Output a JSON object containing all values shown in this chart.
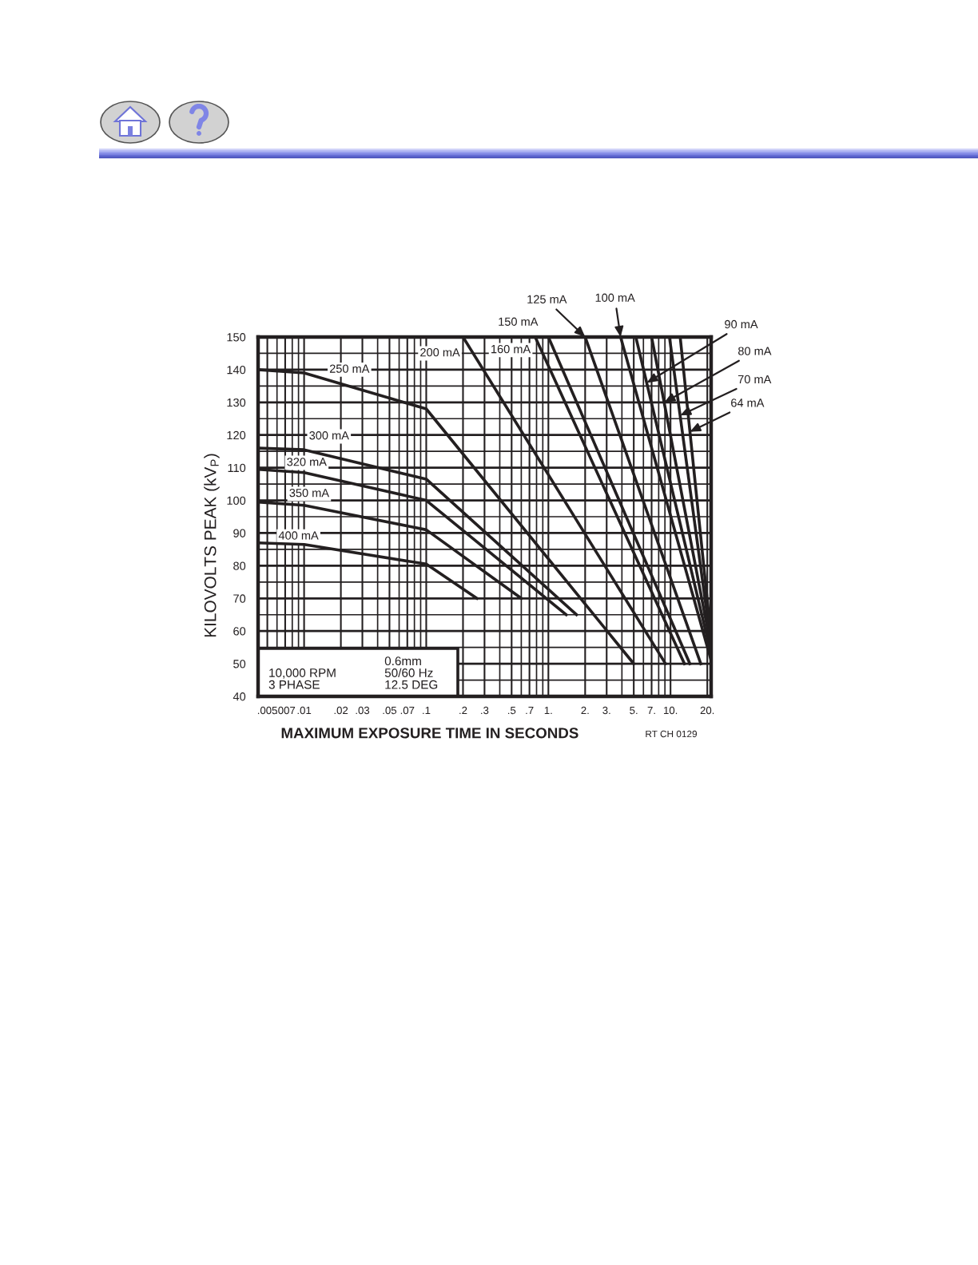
{
  "chart_data": {
    "type": "line",
    "xlabel": "MAXIMUM EXPOSURE TIME IN SECONDS",
    "ylabel": "KILOVOLTS PEAK (kV$_{P}$)",
    "log": "x",
    "grid": true,
    "xlim": [
      0.0042,
      21.5
    ],
    "ylim": [
      40,
      150
    ],
    "xticks": [
      {
        "value": 0.005,
        "label": ".005"
      },
      {
        "value": 0.006,
        "label": null
      },
      {
        "value": 0.007,
        "label": ".007"
      },
      {
        "value": 0.008,
        "label": null
      },
      {
        "value": 0.009,
        "label": null
      },
      {
        "value": 0.01,
        "label": ".01"
      },
      {
        "value": 0.02,
        "label": ".02"
      },
      {
        "value": 0.03,
        "label": ".03"
      },
      {
        "value": 0.04,
        "label": null
      },
      {
        "value": 0.05,
        "label": ".05"
      },
      {
        "value": 0.06,
        "label": null
      },
      {
        "value": 0.07,
        "label": ".07"
      },
      {
        "value": 0.08,
        "label": null
      },
      {
        "value": 0.09,
        "label": null
      },
      {
        "value": 0.1,
        "label": ".1"
      },
      {
        "value": 0.2,
        "label": ".2"
      },
      {
        "value": 0.3,
        "label": ".3"
      },
      {
        "value": 0.4,
        "label": null
      },
      {
        "value": 0.5,
        "label": ".5"
      },
      {
        "value": 0.6,
        "label": null
      },
      {
        "value": 0.7,
        "label": ".7"
      },
      {
        "value": 0.8,
        "label": null
      },
      {
        "value": 0.9,
        "label": null
      },
      {
        "value": 1,
        "label": "1."
      },
      {
        "value": 2,
        "label": "2."
      },
      {
        "value": 3,
        "label": "3."
      },
      {
        "value": 4,
        "label": null
      },
      {
        "value": 5,
        "label": "5."
      },
      {
        "value": 6,
        "label": null
      },
      {
        "value": 7,
        "label": "7."
      },
      {
        "value": 8,
        "label": null
      },
      {
        "value": 9,
        "label": null
      },
      {
        "value": 10,
        "label": "10."
      },
      {
        "value": 20,
        "label": "20."
      }
    ],
    "yticks": [
      40,
      {
        "value": 45,
        "label": null
      },
      50,
      {
        "value": 55,
        "label": null
      },
      60,
      {
        "value": 65,
        "label": null
      },
      70,
      {
        "value": 75,
        "label": null
      },
      80,
      {
        "value": 85,
        "label": null
      },
      90,
      {
        "value": 95,
        "label": null
      },
      100,
      {
        "value": 105,
        "label": null
      },
      110,
      {
        "value": 115,
        "label": null
      },
      120,
      {
        "value": 125,
        "label": null
      },
      130,
      {
        "value": 135,
        "label": null
      },
      140,
      {
        "value": 145,
        "label": null
      },
      150
    ],
    "series": [
      {
        "color": "#231f20",
        "x": [
          0.0042,
          0.01,
          0.1,
          5.0
        ],
        "values": [
          140,
          139,
          128,
          50
        ]
      },
      {
        "color": "#231f20",
        "x": [
          0.0042,
          0.01,
          0.1,
          1.7
        ],
        "values": [
          116,
          115.5,
          106.5,
          65
        ]
      },
      {
        "color": "#231f20",
        "x": [
          0.0042,
          0.01,
          0.1,
          1.4
        ],
        "values": [
          109.5,
          108.5,
          100,
          65
        ]
      },
      {
        "color": "#231f20",
        "x": [
          0.0042,
          0.01,
          0.1,
          0.6
        ],
        "values": [
          99.5,
          98.5,
          91,
          70
        ]
      },
      {
        "color": "#231f20",
        "x": [
          0.0042,
          0.01,
          0.1,
          0.26
        ],
        "values": [
          87,
          86.5,
          80.5,
          70
        ]
      },
      {
        "color": "#231f20",
        "x": [
          0.2,
          9.1
        ],
        "values": [
          150,
          50
        ]
      },
      {
        "color": "#231f20",
        "x": [
          0.78,
          13
        ],
        "values": [
          150,
          50
        ]
      },
      {
        "color": "#231f20",
        "x": [
          1.0,
          14.4
        ],
        "values": [
          150,
          50
        ]
      },
      {
        "color": "#231f20",
        "x": [
          2.0,
          17.7
        ],
        "values": [
          150,
          50
        ]
      },
      {
        "color": "#231f20",
        "x": [
          3.9,
          21.5
        ],
        "values": [
          150,
          51
        ]
      },
      {
        "color": "#231f20",
        "x": [
          5.2,
          21.5
        ],
        "values": [
          150,
          53
        ]
      },
      {
        "color": "#231f20",
        "x": [
          7.0,
          21.5
        ],
        "values": [
          150,
          55
        ]
      },
      {
        "color": "#231f20",
        "x": [
          9.8,
          21.5
        ],
        "values": [
          150,
          56
        ]
      },
      {
        "color": "#231f20",
        "x": [
          12,
          21.5
        ],
        "values": [
          150,
          58
        ]
      }
    ],
    "annotations": [
      {
        "text": "250 mA",
        "x": 0.0235,
        "y": 135
      },
      {
        "text": "300 mA",
        "x": 0.016,
        "y": 113.7
      },
      {
        "text": "320 mA",
        "x": 0.0105,
        "y": 108.3
      },
      {
        "text": "350 mA",
        "x": 0.011,
        "y": 98.2
      },
      {
        "text": "400 mA",
        "x": 0.009,
        "y": 86.5
      },
      {
        "text": "200 mA",
        "x": 0.24,
        "y": 145
      },
      {
        "text": "160 mA",
        "x": 0.87,
        "y": 146
      },
      {
        "text": "150 mA",
        "x": 1.0,
        "y": 150
      },
      {
        "text": "125 mA",
        "x": 2.0,
        "y": 150
      },
      {
        "text": "100 mA",
        "x": 3.9,
        "y": 150
      },
      {
        "text": "90 mA",
        "x": 6.4,
        "y": 136
      },
      {
        "text": "80 mA",
        "x": 8.9,
        "y": 130
      },
      {
        "text": "70 mA",
        "x": 12,
        "y": 126
      },
      {
        "text": "64 mA",
        "x": 14.4,
        "y": 121
      },
      "10,000 RPM\n3 PHASE",
      "0.6mm\n50/60 Hz\n12.5 DEG",
      "RT CH 0129"
    ]
  }
}
